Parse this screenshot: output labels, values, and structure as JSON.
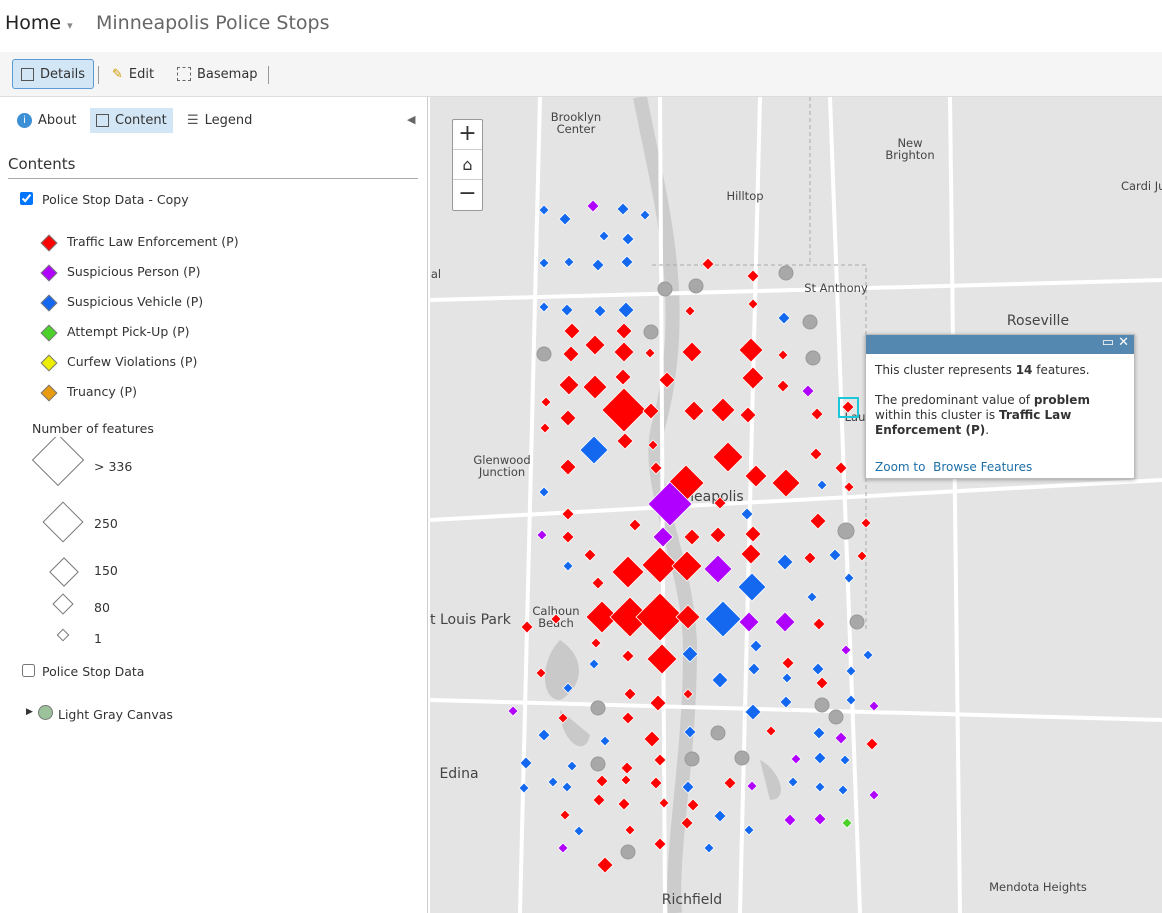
{
  "header": {
    "home": "Home",
    "title": "Minneapolis Police Stops"
  },
  "toolbar": {
    "details": "Details",
    "edit": "Edit",
    "basemap": "Basemap"
  },
  "panel": {
    "tabs": {
      "about": "About",
      "content": "Content",
      "legend": "Legend"
    },
    "heading": "Contents",
    "layer1": "Police Stop Data - Copy",
    "legend_items": [
      "Traffic Law Enforcement (P)",
      "Suspicious Person (P)",
      "Suspicious Vehicle (P)",
      "Attempt Pick-Up (P)",
      "Curfew Violations (P)",
      "Truancy (P)"
    ],
    "size_heading": "Number of features",
    "size_labels": [
      "> 336",
      "250",
      "150",
      "80",
      "1"
    ],
    "layer2": "Police Stop Data",
    "basemap_layer": "Light Gray Canvas"
  },
  "map": {
    "labels": [
      "Brooklyn Center",
      "New Brighton",
      "Hilltop",
      "Cardi Junc",
      "St Anthony",
      "Roseville",
      "al",
      "Lau",
      "Glenwood Junction",
      "Minneapolis",
      "St Louis Park",
      "Calhoun Beach",
      "Edina",
      "Mendota Heights",
      "Richfield"
    ]
  },
  "popup": {
    "line1": [
      "This cluster represents ",
      "14",
      " features."
    ],
    "line2": [
      "The predominant value of ",
      "problem",
      " within this cluster is ",
      "Traffic Law Enforcement (P)",
      "."
    ],
    "zoom": "Zoom to",
    "browse": "Browse Features"
  }
}
